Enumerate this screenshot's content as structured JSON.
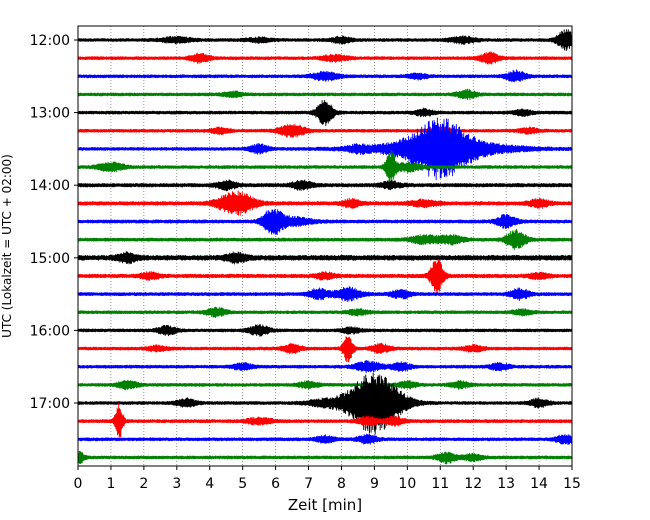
{
  "chart_data": {
    "type": "line",
    "subtype": "helicorder seismogram",
    "title": "",
    "xlabel": "Zeit  [min]",
    "ylabel": "UTC (Lokalzeit = UTC + 02:00)",
    "xlim": [
      0,
      15
    ],
    "x_ticks": [
      "0",
      "1",
      "2",
      "3",
      "4",
      "5",
      "6",
      "7",
      "8",
      "9",
      "10",
      "11",
      "12",
      "13",
      "14",
      "15"
    ],
    "y_tick_labels": [
      "12:00",
      "13:00",
      "14:00",
      "15:00",
      "16:00",
      "17:00"
    ],
    "y_tick_rows": [
      0,
      4,
      8,
      12,
      16,
      20
    ],
    "grid": "vertical dotted lines at each minute",
    "line_colors": [
      "#000000",
      "#ff0000",
      "#0000ff",
      "#008000"
    ],
    "color_cycle": "black, red, blue, green (repeating per 15-minute row)",
    "traces": [
      {
        "row": 0,
        "color": "#000000",
        "base_amp": 1.5,
        "events": [
          [
            3.0,
            2.5,
            0.5
          ],
          [
            5.5,
            2.0,
            0.4
          ],
          [
            8.0,
            3.0,
            0.3
          ],
          [
            11.7,
            3.0,
            0.4
          ],
          [
            14.8,
            10.0,
            0.25
          ]
        ]
      },
      {
        "row": 1,
        "color": "#ff0000",
        "base_amp": 1.5,
        "events": [
          [
            3.7,
            4.0,
            0.3
          ],
          [
            7.8,
            3.0,
            0.4
          ],
          [
            12.5,
            5.0,
            0.3
          ]
        ]
      },
      {
        "row": 2,
        "color": "#0000ff",
        "base_amp": 1.5,
        "events": [
          [
            7.5,
            4.0,
            0.4
          ],
          [
            10.3,
            2.5,
            0.3
          ],
          [
            13.3,
            5.0,
            0.3
          ]
        ]
      },
      {
        "row": 3,
        "color": "#008000",
        "base_amp": 1.5,
        "events": [
          [
            4.7,
            2.5,
            0.3
          ],
          [
            11.8,
            4.0,
            0.3
          ]
        ]
      },
      {
        "row": 4,
        "color": "#000000",
        "base_amp": 1.5,
        "events": [
          [
            7.5,
            12.0,
            0.25
          ],
          [
            10.5,
            3.0,
            0.3
          ],
          [
            13.5,
            2.5,
            0.3
          ]
        ]
      },
      {
        "row": 5,
        "color": "#ff0000",
        "base_amp": 1.5,
        "events": [
          [
            4.3,
            2.5,
            0.3
          ],
          [
            6.5,
            6.0,
            0.4
          ],
          [
            11.0,
            4.0,
            0.3
          ],
          [
            13.7,
            2.5,
            0.3
          ]
        ]
      },
      {
        "row": 6,
        "color": "#0000ff",
        "base_amp": 1.5,
        "events": [
          [
            5.5,
            4.0,
            0.3
          ],
          [
            8.5,
            2.5,
            0.3
          ],
          [
            11.0,
            22.0,
            0.85
          ],
          [
            11.0,
            8.0,
            2.0
          ]
        ]
      },
      {
        "row": 7,
        "color": "#008000",
        "base_amp": 1.5,
        "events": [
          [
            1.0,
            4.0,
            0.4
          ],
          [
            9.5,
            15.0,
            0.15
          ],
          [
            10.0,
            4.0,
            0.4
          ]
        ]
      },
      {
        "row": 8,
        "color": "#000000",
        "base_amp": 1.8,
        "events": [
          [
            4.5,
            4.0,
            0.3
          ],
          [
            6.8,
            4.0,
            0.3
          ],
          [
            9.5,
            3.0,
            0.3
          ]
        ]
      },
      {
        "row": 9,
        "color": "#ff0000",
        "base_amp": 1.8,
        "events": [
          [
            4.8,
            11.0,
            0.55
          ],
          [
            8.3,
            3.5,
            0.3
          ],
          [
            10.5,
            3.0,
            0.4
          ],
          [
            14.0,
            4.0,
            0.3
          ]
        ]
      },
      {
        "row": 10,
        "color": "#0000ff",
        "base_amp": 1.6,
        "events": [
          [
            5.9,
            12.0,
            0.3
          ],
          [
            6.5,
            4.0,
            0.6
          ],
          [
            13.0,
            6.0,
            0.3
          ]
        ]
      },
      {
        "row": 11,
        "color": "#008000",
        "base_amp": 1.6,
        "events": [
          [
            10.5,
            4.0,
            0.4
          ],
          [
            11.3,
            4.0,
            0.4
          ],
          [
            13.3,
            9.0,
            0.3
          ]
        ]
      },
      {
        "row": 12,
        "color": "#000000",
        "base_amp": 2.5,
        "events": [
          [
            1.5,
            4.0,
            0.3
          ],
          [
            4.8,
            4.0,
            0.3
          ]
        ]
      },
      {
        "row": 13,
        "color": "#ff0000",
        "base_amp": 1.8,
        "events": [
          [
            2.2,
            3.0,
            0.3
          ],
          [
            7.5,
            3.0,
            0.3
          ],
          [
            10.9,
            16.0,
            0.2
          ],
          [
            14.0,
            2.5,
            0.3
          ]
        ]
      },
      {
        "row": 14,
        "color": "#0000ff",
        "base_amp": 1.6,
        "events": [
          [
            7.3,
            5.0,
            0.3
          ],
          [
            8.2,
            6.0,
            0.4
          ],
          [
            9.8,
            4.0,
            0.3
          ],
          [
            13.4,
            5.0,
            0.3
          ]
        ]
      },
      {
        "row": 15,
        "color": "#008000",
        "base_amp": 1.5,
        "events": [
          [
            4.2,
            4.0,
            0.3
          ],
          [
            8.5,
            2.5,
            0.3
          ],
          [
            13.5,
            2.5,
            0.3
          ]
        ]
      },
      {
        "row": 16,
        "color": "#000000",
        "base_amp": 1.5,
        "events": [
          [
            2.7,
            4.0,
            0.3
          ],
          [
            5.5,
            5.0,
            0.3
          ],
          [
            8.3,
            2.5,
            0.3
          ]
        ]
      },
      {
        "row": 17,
        "color": "#ff0000",
        "base_amp": 1.5,
        "events": [
          [
            2.4,
            2.5,
            0.3
          ],
          [
            6.5,
            4.0,
            0.3
          ],
          [
            8.2,
            14.0,
            0.15
          ],
          [
            9.2,
            4.0,
            0.3
          ],
          [
            12.0,
            3.0,
            0.3
          ]
        ]
      },
      {
        "row": 18,
        "color": "#0000ff",
        "base_amp": 1.5,
        "events": [
          [
            5.0,
            3.0,
            0.3
          ],
          [
            8.8,
            5.0,
            0.4
          ],
          [
            9.8,
            4.0,
            0.3
          ],
          [
            12.8,
            3.0,
            0.3
          ]
        ]
      },
      {
        "row": 19,
        "color": "#008000",
        "base_amp": 1.5,
        "events": [
          [
            1.5,
            4.0,
            0.3
          ],
          [
            7.0,
            3.0,
            0.3
          ],
          [
            10.0,
            3.0,
            0.3
          ],
          [
            11.6,
            3.0,
            0.3
          ]
        ]
      },
      {
        "row": 20,
        "color": "#000000",
        "base_amp": 1.5,
        "events": [
          [
            3.3,
            4.0,
            0.3
          ],
          [
            7.5,
            3.0,
            0.6
          ],
          [
            9.0,
            30.0,
            0.8
          ],
          [
            14.0,
            4.0,
            0.3
          ]
        ]
      },
      {
        "row": 21,
        "color": "#ff0000",
        "base_amp": 1.6,
        "events": [
          [
            1.25,
            17.0,
            0.12
          ],
          [
            5.5,
            3.0,
            0.4
          ],
          [
            8.8,
            4.0,
            0.3
          ],
          [
            9.6,
            4.0,
            0.3
          ]
        ]
      },
      {
        "row": 22,
        "color": "#0000ff",
        "base_amp": 1.5,
        "events": [
          [
            7.5,
            3.0,
            0.3
          ],
          [
            8.8,
            4.0,
            0.3
          ],
          [
            14.8,
            4.0,
            0.3
          ]
        ]
      },
      {
        "row": 23,
        "color": "#008000",
        "base_amp": 1.5,
        "events": [
          [
            0.05,
            5.0,
            0.15
          ],
          [
            11.2,
            5.0,
            0.3
          ],
          [
            12.0,
            3.0,
            0.3
          ]
        ]
      }
    ]
  }
}
